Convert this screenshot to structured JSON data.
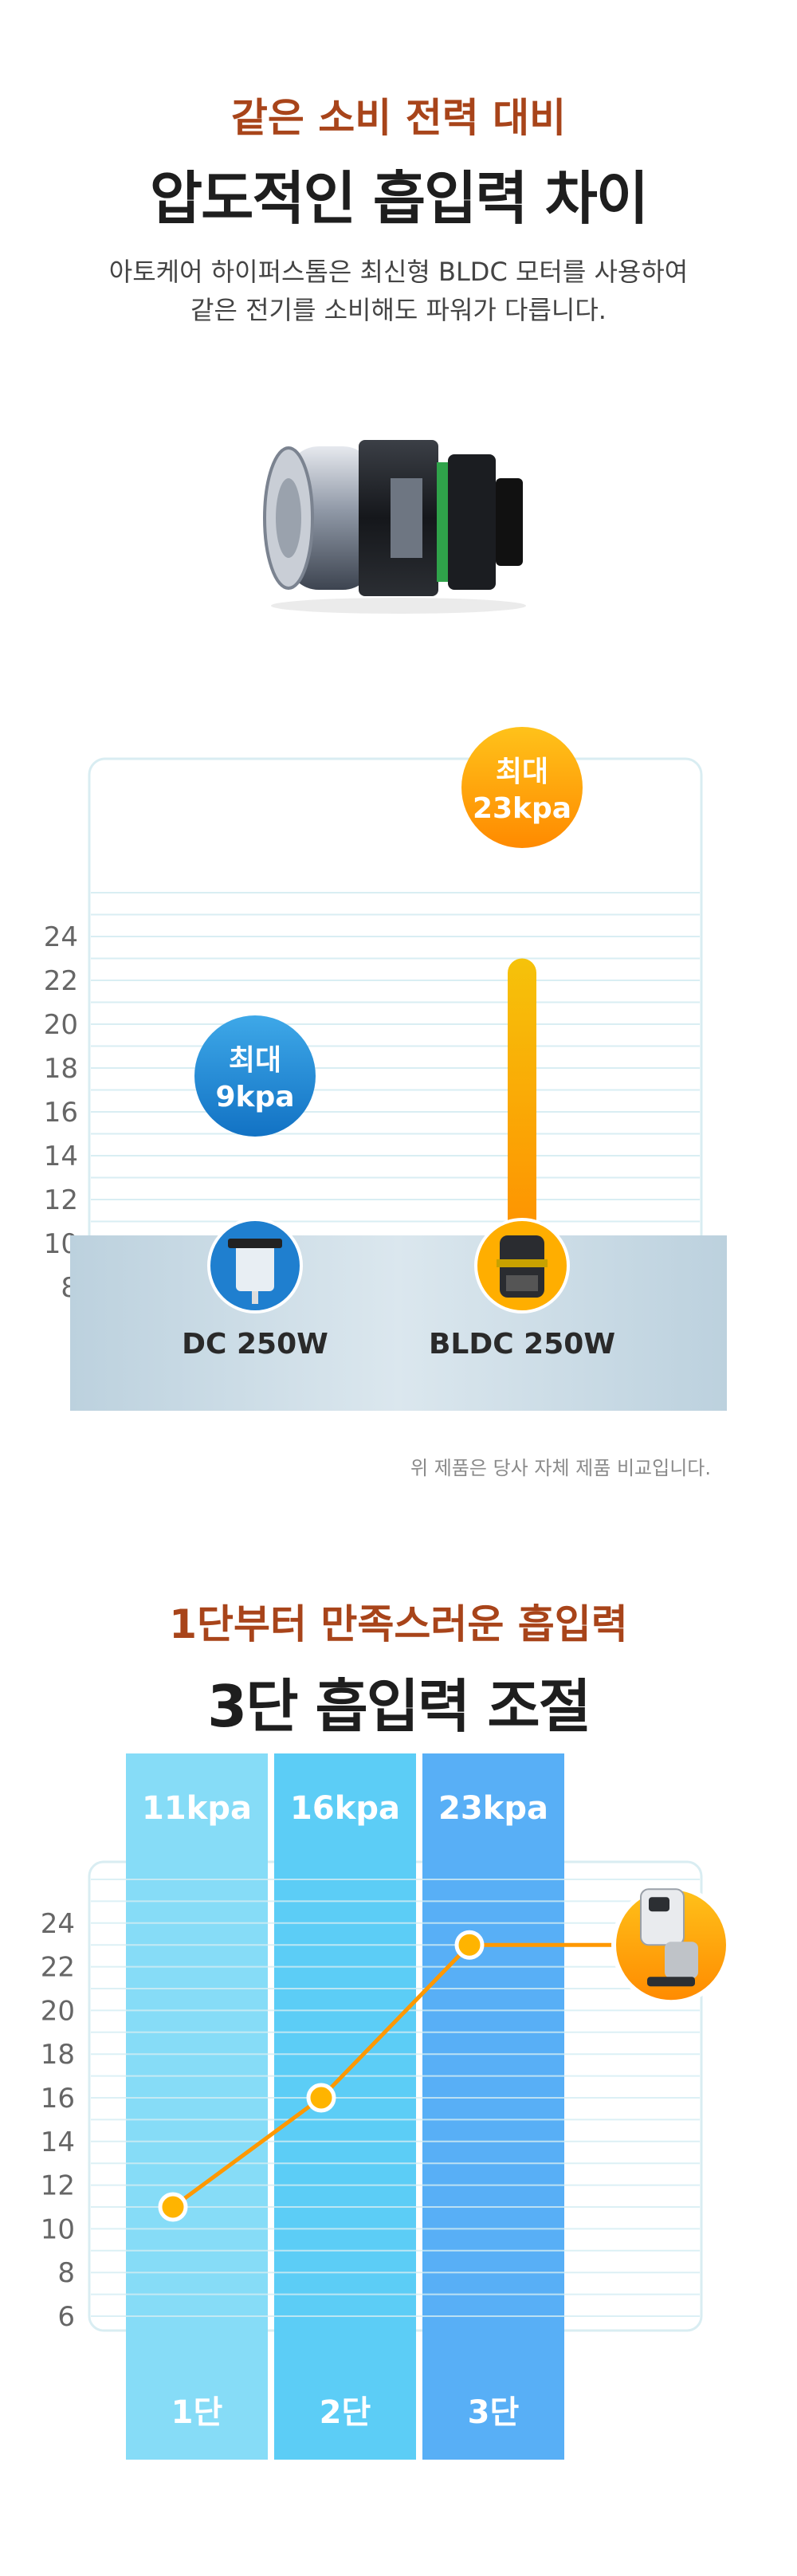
{
  "section1": {
    "subtitle": "같은 소비 전력 대비",
    "title": "압도적인 흡입력 차이",
    "desc_line1": "아토케어 하이퍼스톰은 최신형 BLDC 모터를 사용하여",
    "desc_line2": "같은 전기를 소비해도 파워가 다릅니다.",
    "note": "위 제품은 당사 자체 제품 비교입니다."
  },
  "section2": {
    "subtitle": "1단부터 만족스러운 흡입력",
    "title": "3단 흡입력 조절"
  },
  "colors": {
    "accent_orange": "#ff9800",
    "accent_blue": "#1f8fd6",
    "title_brown": "#a8441a",
    "level1": "#86dcf7",
    "level2": "#5ccdf6",
    "level3": "#58aff6"
  },
  "chart_data": [
    {
      "type": "bar",
      "title": "",
      "xlabel": "",
      "ylabel": "",
      "categories": [
        "DC 250W",
        "BLDC 250W"
      ],
      "values": [
        9,
        23
      ],
      "value_labels": [
        {
          "line1": "최대",
          "line2": "9kpa"
        },
        {
          "line1": "최대",
          "line2": "23kpa"
        }
      ],
      "yticks": [
        8,
        10,
        12,
        14,
        16,
        18,
        20,
        22,
        24
      ],
      "ylim": [
        6,
        26
      ],
      "grid": true,
      "icons": [
        "dc-motor-icon",
        "bldc-motor-icon"
      ]
    },
    {
      "type": "line",
      "title": "",
      "xlabel": "",
      "ylabel": "",
      "categories": [
        "1단",
        "2단",
        "3단"
      ],
      "values": [
        11,
        16,
        23
      ],
      "header_labels": [
        "11kpa",
        "16kpa",
        "23kpa"
      ],
      "yticks": [
        6,
        8,
        10,
        12,
        14,
        16,
        18,
        20,
        22,
        24
      ],
      "ylim": [
        5,
        26
      ],
      "grid": true,
      "icon": "vacuum-cleaner-icon"
    }
  ]
}
